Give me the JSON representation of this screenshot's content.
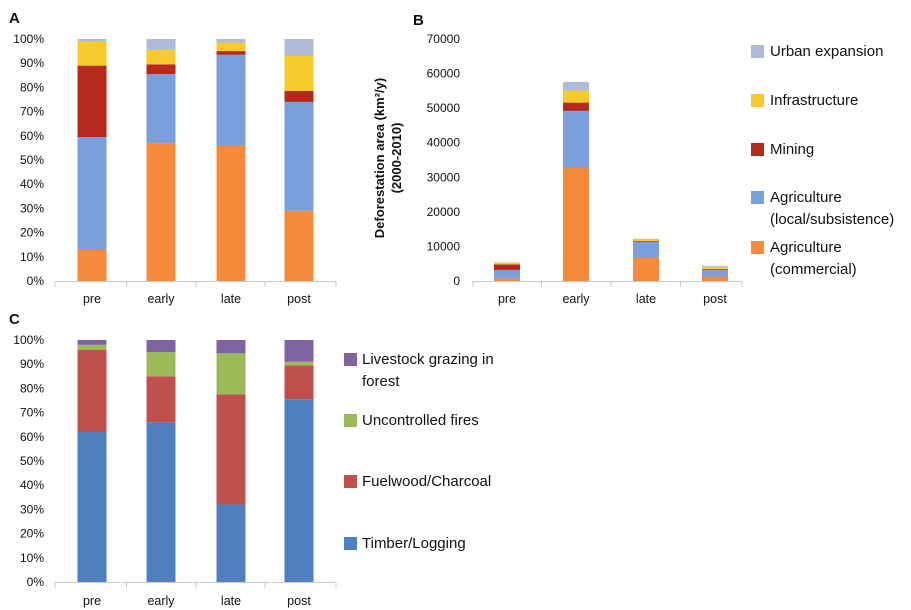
{
  "chart_data": [
    {
      "panel": "A",
      "type": "bar",
      "stacked": true,
      "categories": [
        "pre",
        "early",
        "late",
        "post"
      ],
      "yticks": [
        "0%",
        "10%",
        "20%",
        "30%",
        "40%",
        "50%",
        "60%",
        "70%",
        "80%",
        "90%",
        "100%"
      ],
      "ylim": [
        0,
        100
      ],
      "series": [
        {
          "key": "ag_comm",
          "values": [
            13,
            57,
            56,
            29
          ]
        },
        {
          "key": "ag_local",
          "values": [
            46.5,
            28.5,
            37.5,
            45
          ]
        },
        {
          "key": "mining",
          "values": [
            29.5,
            4,
            1.5,
            4.5
          ]
        },
        {
          "key": "infra",
          "values": [
            10,
            6,
            3.5,
            14.5
          ]
        },
        {
          "key": "urban",
          "values": [
            1,
            4.5,
            1.5,
            7
          ]
        }
      ]
    },
    {
      "panel": "B",
      "type": "bar",
      "stacked": true,
      "categories": [
        "pre",
        "early",
        "late",
        "post"
      ],
      "yticks": [
        "0",
        "10000",
        "20000",
        "30000",
        "40000",
        "50000",
        "60000",
        "70000"
      ],
      "ylim": [
        0,
        70000
      ],
      "ylabel_line1": "Deforestation area (km²/y)",
      "ylabel_line2": "(2000-2010)",
      "legend_position": "right",
      "series": [
        {
          "key": "ag_comm",
          "name_lines": [
            "Agriculture",
            "(commercial)"
          ],
          "values": [
            700,
            32700,
            6800,
            1300
          ]
        },
        {
          "key": "ag_local",
          "name_lines": [
            "Agriculture",
            "(local/subsistence)"
          ],
          "values": [
            2500,
            16500,
            4600,
            2000
          ]
        },
        {
          "key": "mining",
          "name_lines": [
            "Mining"
          ],
          "values": [
            1600,
            2400,
            200,
            200
          ]
        },
        {
          "key": "infra",
          "name_lines": [
            "Infrastructure"
          ],
          "values": [
            500,
            3500,
            400,
            600
          ]
        },
        {
          "key": "urban",
          "name_lines": [
            "Urban expansion"
          ],
          "values": [
            100,
            2500,
            200,
            300
          ]
        }
      ]
    },
    {
      "panel": "C",
      "type": "bar",
      "stacked": true,
      "categories": [
        "pre",
        "early",
        "late",
        "post"
      ],
      "yticks": [
        "0%",
        "10%",
        "20%",
        "30%",
        "40%",
        "50%",
        "60%",
        "70%",
        "80%",
        "90%",
        "100%"
      ],
      "ylim": [
        0,
        100
      ],
      "legend_position": "right",
      "series": [
        {
          "key": "timber",
          "name_lines": [
            "Timber/Logging"
          ],
          "values": [
            62,
            66,
            32,
            75.5
          ]
        },
        {
          "key": "fuel",
          "name_lines": [
            "Fuelwood/Charcoal"
          ],
          "values": [
            34,
            19,
            45.5,
            14
          ]
        },
        {
          "key": "fires",
          "name_lines": [
            "Uncontrolled fires"
          ],
          "values": [
            2,
            10,
            17,
            1.5
          ]
        },
        {
          "key": "livestock",
          "name_lines": [
            "Livestock grazing in",
            "forest"
          ],
          "values": [
            2,
            5,
            5.5,
            9
          ]
        }
      ]
    }
  ],
  "colors": {
    "ag_comm": "#f58a3a",
    "ag_local": "#7b9fdb",
    "mining": "#b52a1c",
    "infra": "#f6cb2b",
    "urban": "#aebad6",
    "timber": "#4f7fbf",
    "fuel": "#c0504d",
    "fires": "#9bbb59",
    "livestock": "#8064a2"
  }
}
